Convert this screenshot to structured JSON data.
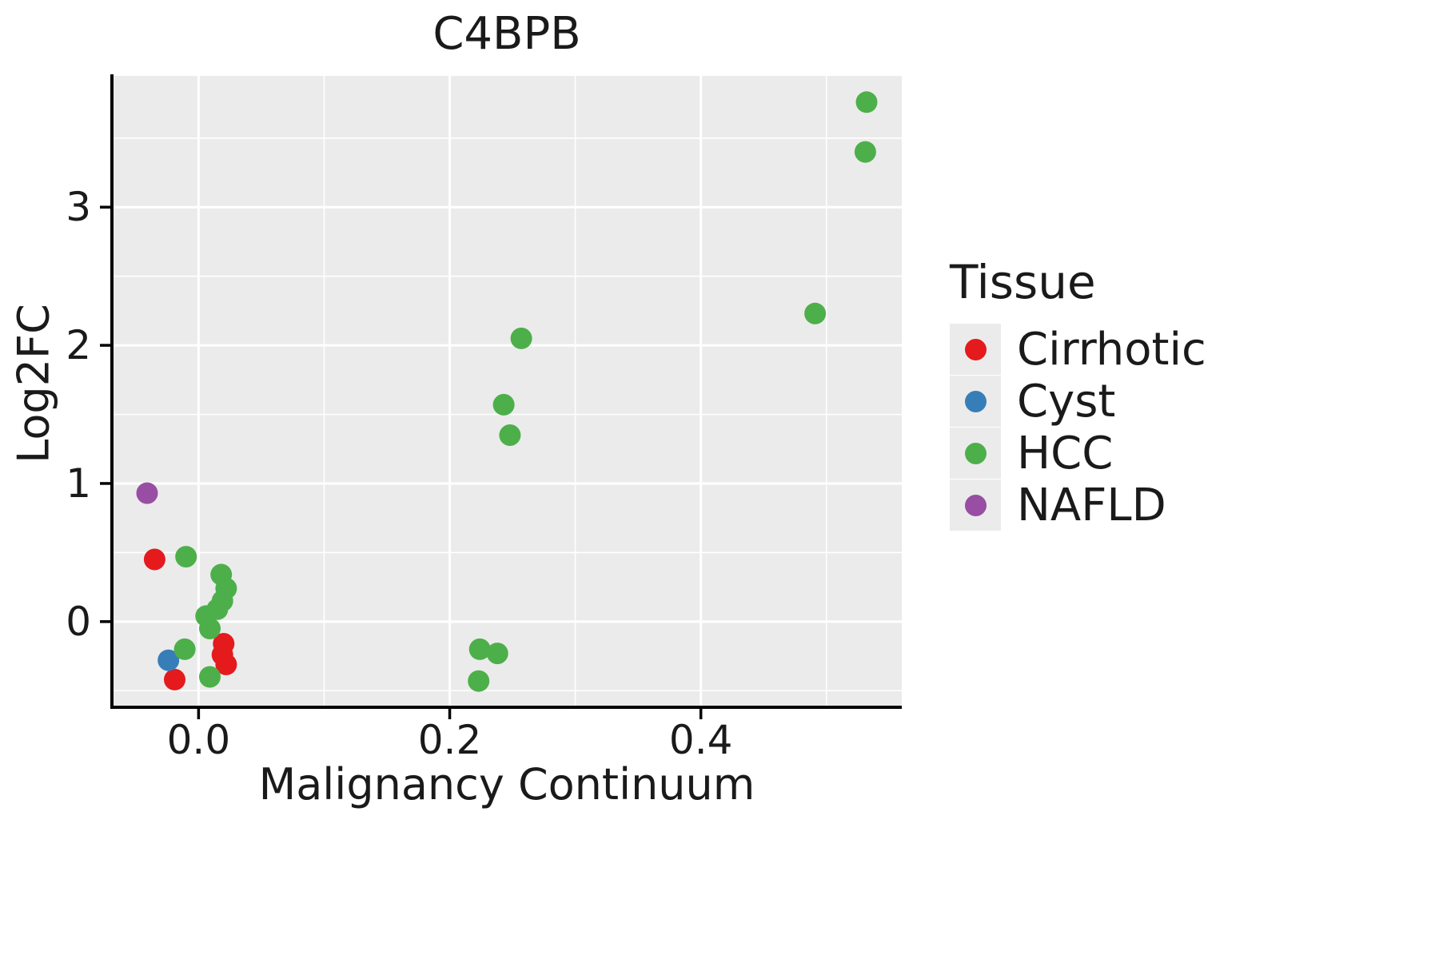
{
  "legend": {
    "title": "Tissue",
    "entries": [
      {
        "label": "Cirrhotic",
        "color": "#E41A1C"
      },
      {
        "label": "Cyst",
        "color": "#377EB8"
      },
      {
        "label": "HCC",
        "color": "#4DAF4A"
      },
      {
        "label": "NAFLD",
        "color": "#984EA3"
      }
    ]
  },
  "chart_data": {
    "type": "scatter",
    "title": "C4BPB",
    "xlabel": "Malignancy Continuum",
    "ylabel": "Log2FC",
    "xlim": [
      -0.069,
      0.56
    ],
    "ylim": [
      -0.62,
      3.95
    ],
    "x_ticks": [
      {
        "v": 0.0,
        "label": "0.0"
      },
      {
        "v": 0.2,
        "label": "0.2"
      },
      {
        "v": 0.4,
        "label": "0.4"
      }
    ],
    "y_ticks": [
      {
        "v": 0,
        "label": "0"
      },
      {
        "v": 1,
        "label": "1"
      },
      {
        "v": 2,
        "label": "2"
      },
      {
        "v": 3,
        "label": "3"
      }
    ],
    "x_minor": [
      0.1,
      0.3,
      0.5
    ],
    "y_minor": [
      -0.5,
      0.5,
      1.5,
      2.5,
      3.5
    ],
    "grid": true,
    "legend_position": "right",
    "panel_background": "#EBEBEB",
    "gridline_color": "#FFFFFF",
    "axis_color": "#000000",
    "point_radius": 13.5,
    "series": [
      {
        "name": "Cirrhotic",
        "color": "#E41A1C",
        "points": [
          [
            -0.035,
            0.45
          ],
          [
            0.02,
            -0.16
          ],
          [
            0.019,
            -0.24
          ],
          [
            0.022,
            -0.31
          ],
          [
            -0.019,
            -0.42
          ]
        ]
      },
      {
        "name": "Cyst",
        "color": "#377EB8",
        "points": [
          [
            -0.024,
            -0.28
          ]
        ]
      },
      {
        "name": "HCC",
        "color": "#4DAF4A",
        "points": [
          [
            0.532,
            3.76
          ],
          [
            0.531,
            3.4
          ],
          [
            0.491,
            2.23
          ],
          [
            0.257,
            2.05
          ],
          [
            0.243,
            1.57
          ],
          [
            0.248,
            1.35
          ],
          [
            -0.01,
            0.47
          ],
          [
            0.018,
            0.34
          ],
          [
            0.022,
            0.24
          ],
          [
            0.019,
            0.15
          ],
          [
            0.015,
            0.09
          ],
          [
            0.006,
            0.04
          ],
          [
            0.009,
            -0.05
          ],
          [
            -0.011,
            -0.2
          ],
          [
            0.224,
            -0.2
          ],
          [
            0.238,
            -0.23
          ],
          [
            0.009,
            -0.4
          ],
          [
            0.223,
            -0.43
          ]
        ]
      },
      {
        "name": "NAFLD",
        "color": "#984EA3",
        "points": [
          [
            -0.041,
            0.93
          ]
        ]
      }
    ]
  }
}
